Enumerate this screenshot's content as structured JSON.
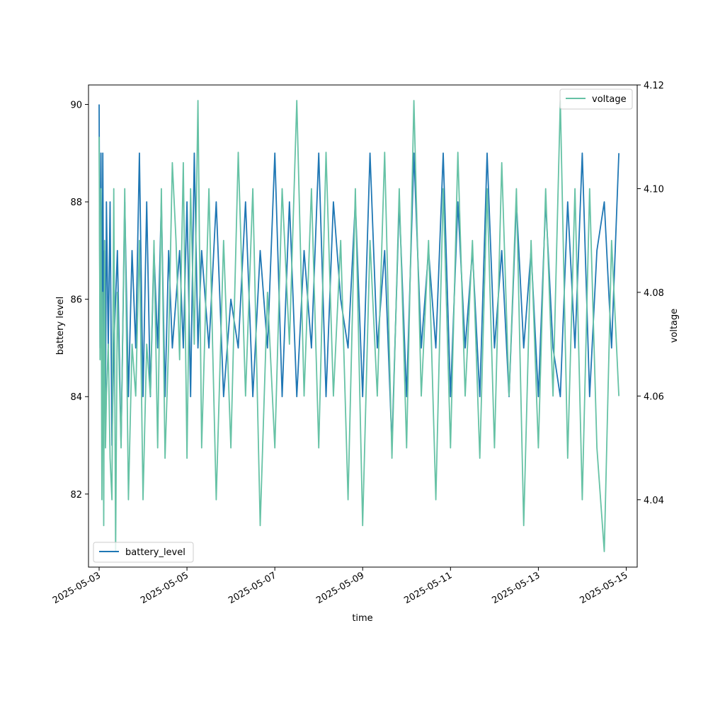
{
  "chart_data": {
    "type": "line",
    "title": "",
    "xlabel": "time",
    "ylabel_left": "battery level",
    "ylabel_right": "voltage",
    "x_range": [
      "2025-05-02T18:12",
      "2025-05-15T06:00"
    ],
    "x_ticks": [
      "2025-05-03",
      "2025-05-05",
      "2025-05-07",
      "2025-05-09",
      "2025-05-11",
      "2025-05-13",
      "2025-05-15"
    ],
    "ylim_left": [
      80.5,
      90.4
    ],
    "yticks_left": [
      "82",
      "84",
      "86",
      "88",
      "90"
    ],
    "ylim_right": [
      4.027,
      4.12
    ],
    "yticks_right": [
      "4.04",
      "4.06",
      "4.08",
      "4.10",
      "4.12"
    ],
    "grid": false,
    "series": [
      {
        "name": "battery_level",
        "axis": "left",
        "color": "#1f77b4",
        "legend": "lower-left",
        "x": [
          "2025-05-03T00:00",
          "2025-05-03T00:30",
          "2025-05-03T01:00",
          "2025-05-03T01:30",
          "2025-05-03T02:00",
          "2025-05-03T02:30",
          "2025-05-03T03:00",
          "2025-05-03T03:30",
          "2025-05-03T04:00",
          "2025-05-03T05:00",
          "2025-05-03T06:00",
          "2025-05-03T07:00",
          "2025-05-03T08:00",
          "2025-05-03T09:00",
          "2025-05-03T10:00",
          "2025-05-03T12:00",
          "2025-05-03T14:00",
          "2025-05-03T16:00",
          "2025-05-03T18:00",
          "2025-05-03T20:00",
          "2025-05-03T22:00",
          "2025-05-04T00:00",
          "2025-05-04T02:00",
          "2025-05-04T04:00",
          "2025-05-04T06:00",
          "2025-05-04T08:00",
          "2025-05-04T10:00",
          "2025-05-04T12:00",
          "2025-05-04T14:00",
          "2025-05-04T16:00",
          "2025-05-04T18:00",
          "2025-05-04T20:00",
          "2025-05-04T22:00",
          "2025-05-05T00:00",
          "2025-05-05T02:00",
          "2025-05-05T04:00",
          "2025-05-05T06:00",
          "2025-05-05T08:00",
          "2025-05-05T12:00",
          "2025-05-05T16:00",
          "2025-05-05T20:00",
          "2025-05-06T00:00",
          "2025-05-06T04:00",
          "2025-05-06T08:00",
          "2025-05-06T12:00",
          "2025-05-06T16:00",
          "2025-05-06T20:00",
          "2025-05-07T00:00",
          "2025-05-07T04:00",
          "2025-05-07T08:00",
          "2025-05-07T12:00",
          "2025-05-07T16:00",
          "2025-05-07T20:00",
          "2025-05-08T00:00",
          "2025-05-08T04:00",
          "2025-05-08T08:00",
          "2025-05-08T12:00",
          "2025-05-08T16:00",
          "2025-05-08T20:00",
          "2025-05-09T00:00",
          "2025-05-09T04:00",
          "2025-05-09T08:00",
          "2025-05-09T12:00",
          "2025-05-09T16:00",
          "2025-05-09T20:00",
          "2025-05-10T00:00",
          "2025-05-10T04:00",
          "2025-05-10T08:00",
          "2025-05-10T12:00",
          "2025-05-10T16:00",
          "2025-05-10T20:00",
          "2025-05-11T00:00",
          "2025-05-11T04:00",
          "2025-05-11T08:00",
          "2025-05-11T12:00",
          "2025-05-11T16:00",
          "2025-05-11T20:00",
          "2025-05-12T00:00",
          "2025-05-12T04:00",
          "2025-05-12T08:00",
          "2025-05-12T12:00",
          "2025-05-12T16:00",
          "2025-05-12T20:00",
          "2025-05-13T00:00",
          "2025-05-13T04:00",
          "2025-05-13T08:00",
          "2025-05-13T12:00",
          "2025-05-13T16:00",
          "2025-05-13T20:00",
          "2025-05-14T00:00",
          "2025-05-14T04:00",
          "2025-05-14T08:00",
          "2025-05-14T12:00",
          "2025-05-14T16:00",
          "2025-05-14T20:00"
        ],
        "values": [
          90,
          85,
          89,
          85,
          89,
          85,
          87,
          84,
          88,
          85,
          88,
          83,
          85,
          86,
          87,
          83,
          88,
          84,
          87,
          85,
          89,
          84,
          88,
          84,
          87,
          85,
          88,
          84,
          87,
          85,
          86,
          87,
          85,
          88,
          84,
          89,
          85,
          87,
          85,
          88,
          84,
          86,
          85,
          88,
          84,
          87,
          85,
          89,
          84,
          88,
          84,
          87,
          85,
          89,
          84,
          88,
          86,
          85,
          88,
          84,
          89,
          85,
          87,
          83,
          88,
          84,
          89,
          85,
          87,
          85,
          89,
          84,
          88,
          85,
          87,
          84,
          89,
          85,
          87,
          84,
          88,
          85,
          87,
          84,
          88,
          85,
          84,
          88,
          85,
          89,
          84,
          87,
          88,
          85,
          89
        ]
      },
      {
        "name": "voltage",
        "axis": "right",
        "color": "#66c2a5",
        "legend": "upper-right",
        "x": [
          "2025-05-03T00:00",
          "2025-05-03T00:30",
          "2025-05-03T01:00",
          "2025-05-03T01:30",
          "2025-05-03T02:00",
          "2025-05-03T02:30",
          "2025-05-03T03:00",
          "2025-05-03T03:30",
          "2025-05-03T04:00",
          "2025-05-03T05:00",
          "2025-05-03T06:00",
          "2025-05-03T07:00",
          "2025-05-03T08:00",
          "2025-05-03T09:00",
          "2025-05-03T10:00",
          "2025-05-03T12:00",
          "2025-05-03T14:00",
          "2025-05-03T16:00",
          "2025-05-03T18:00",
          "2025-05-03T20:00",
          "2025-05-03T22:00",
          "2025-05-04T00:00",
          "2025-05-04T02:00",
          "2025-05-04T04:00",
          "2025-05-04T06:00",
          "2025-05-04T08:00",
          "2025-05-04T10:00",
          "2025-05-04T12:00",
          "2025-05-04T14:00",
          "2025-05-04T16:00",
          "2025-05-04T18:00",
          "2025-05-04T20:00",
          "2025-05-04T22:00",
          "2025-05-05T00:00",
          "2025-05-05T02:00",
          "2025-05-05T04:00",
          "2025-05-05T06:00",
          "2025-05-05T08:00",
          "2025-05-05T12:00",
          "2025-05-05T16:00",
          "2025-05-05T20:00",
          "2025-05-06T00:00",
          "2025-05-06T04:00",
          "2025-05-06T08:00",
          "2025-05-06T12:00",
          "2025-05-06T16:00",
          "2025-05-06T20:00",
          "2025-05-07T00:00",
          "2025-05-07T04:00",
          "2025-05-07T08:00",
          "2025-05-07T12:00",
          "2025-05-07T16:00",
          "2025-05-07T20:00",
          "2025-05-08T00:00",
          "2025-05-08T04:00",
          "2025-05-08T08:00",
          "2025-05-08T12:00",
          "2025-05-08T16:00",
          "2025-05-08T20:00",
          "2025-05-09T00:00",
          "2025-05-09T04:00",
          "2025-05-09T08:00",
          "2025-05-09T12:00",
          "2025-05-09T16:00",
          "2025-05-09T20:00",
          "2025-05-10T00:00",
          "2025-05-10T04:00",
          "2025-05-10T08:00",
          "2025-05-10T12:00",
          "2025-05-10T16:00",
          "2025-05-10T20:00",
          "2025-05-11T00:00",
          "2025-05-11T04:00",
          "2025-05-11T08:00",
          "2025-05-11T12:00",
          "2025-05-11T16:00",
          "2025-05-11T20:00",
          "2025-05-12T00:00",
          "2025-05-12T04:00",
          "2025-05-12T08:00",
          "2025-05-12T12:00",
          "2025-05-12T16:00",
          "2025-05-12T20:00",
          "2025-05-13T00:00",
          "2025-05-13T04:00",
          "2025-05-13T08:00",
          "2025-05-13T12:00",
          "2025-05-13T16:00",
          "2025-05-13T20:00",
          "2025-05-14T00:00",
          "2025-05-14T04:00",
          "2025-05-14T08:00",
          "2025-05-14T12:00",
          "2025-05-14T16:00",
          "2025-05-14T20:00"
        ],
        "values": [
          4.11,
          4.067,
          4.1,
          4.04,
          4.08,
          4.035,
          4.09,
          4.05,
          4.06,
          4.07,
          4.048,
          4.04,
          4.1,
          4.03,
          4.08,
          4.05,
          4.1,
          4.04,
          4.07,
          4.06,
          4.09,
          4.04,
          4.07,
          4.06,
          4.09,
          4.05,
          4.1,
          4.048,
          4.07,
          4.105,
          4.09,
          4.067,
          4.105,
          4.048,
          4.1,
          4.07,
          4.117,
          4.05,
          4.1,
          4.04,
          4.09,
          4.05,
          4.107,
          4.06,
          4.1,
          4.035,
          4.08,
          4.05,
          4.1,
          4.07,
          4.117,
          4.06,
          4.1,
          4.05,
          4.107,
          4.06,
          4.09,
          4.04,
          4.1,
          4.035,
          4.09,
          4.06,
          4.107,
          4.048,
          4.1,
          4.05,
          4.117,
          4.06,
          4.09,
          4.04,
          4.1,
          4.05,
          4.107,
          4.06,
          4.09,
          4.048,
          4.1,
          4.05,
          4.105,
          4.06,
          4.1,
          4.035,
          4.09,
          4.05,
          4.1,
          4.06,
          4.117,
          4.048,
          4.1,
          4.04,
          4.1,
          4.05,
          4.03,
          4.09,
          4.06
        ]
      }
    ]
  }
}
